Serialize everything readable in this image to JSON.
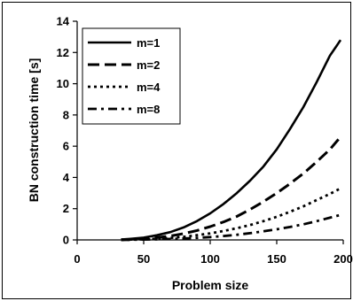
{
  "chart_data": {
    "type": "line",
    "title": "",
    "xlabel": "Problem size",
    "ylabel": "BN construction time [s]",
    "xlim": [
      0,
      200
    ],
    "ylim": [
      0,
      14
    ],
    "xticks": [
      0,
      50,
      100,
      150,
      200
    ],
    "yticks": [
      0,
      2,
      4,
      6,
      8,
      10,
      12,
      14
    ],
    "xtick_labels": [
      "0",
      "50",
      "100",
      "150",
      "200"
    ],
    "ytick_labels": [
      "0",
      "2",
      "4",
      "6",
      "8",
      "10",
      "12",
      "14"
    ],
    "grid": false,
    "legend_position": "top-left",
    "series": [
      {
        "name": "m=1",
        "dash": "solid",
        "x": [
          33,
          40,
          50,
          60,
          70,
          80,
          90,
          100,
          110,
          120,
          130,
          140,
          150,
          160,
          170,
          180,
          190,
          198
        ],
        "y": [
          0.02,
          0.07,
          0.15,
          0.3,
          0.5,
          0.8,
          1.2,
          1.7,
          2.3,
          3.0,
          3.8,
          4.7,
          5.8,
          7.1,
          8.5,
          10.1,
          11.8,
          12.8
        ]
      },
      {
        "name": "m=2",
        "dash": "long-dash",
        "x": [
          33,
          40,
          50,
          60,
          70,
          80,
          90,
          100,
          110,
          120,
          130,
          140,
          150,
          160,
          170,
          180,
          190,
          198
        ],
        "y": [
          0.01,
          0.03,
          0.08,
          0.15,
          0.25,
          0.4,
          0.6,
          0.85,
          1.15,
          1.5,
          1.95,
          2.45,
          3.0,
          3.6,
          4.25,
          5.0,
          5.8,
          6.6
        ]
      },
      {
        "name": "m=4",
        "dash": "dotted",
        "x": [
          33,
          50,
          60,
          70,
          80,
          90,
          100,
          110,
          120,
          130,
          140,
          150,
          160,
          170,
          180,
          190,
          198
        ],
        "y": [
          0.0,
          0.04,
          0.08,
          0.13,
          0.2,
          0.3,
          0.42,
          0.57,
          0.75,
          0.95,
          1.2,
          1.48,
          1.8,
          2.15,
          2.55,
          2.95,
          3.3
        ]
      },
      {
        "name": "m=8",
        "dash": "dash-dot",
        "x": [
          33,
          50,
          60,
          70,
          80,
          90,
          100,
          110,
          120,
          130,
          140,
          150,
          160,
          170,
          180,
          190,
          198
        ],
        "y": [
          0.0,
          0.02,
          0.04,
          0.06,
          0.09,
          0.13,
          0.18,
          0.25,
          0.33,
          0.43,
          0.55,
          0.68,
          0.83,
          1.0,
          1.2,
          1.42,
          1.6
        ]
      }
    ]
  }
}
